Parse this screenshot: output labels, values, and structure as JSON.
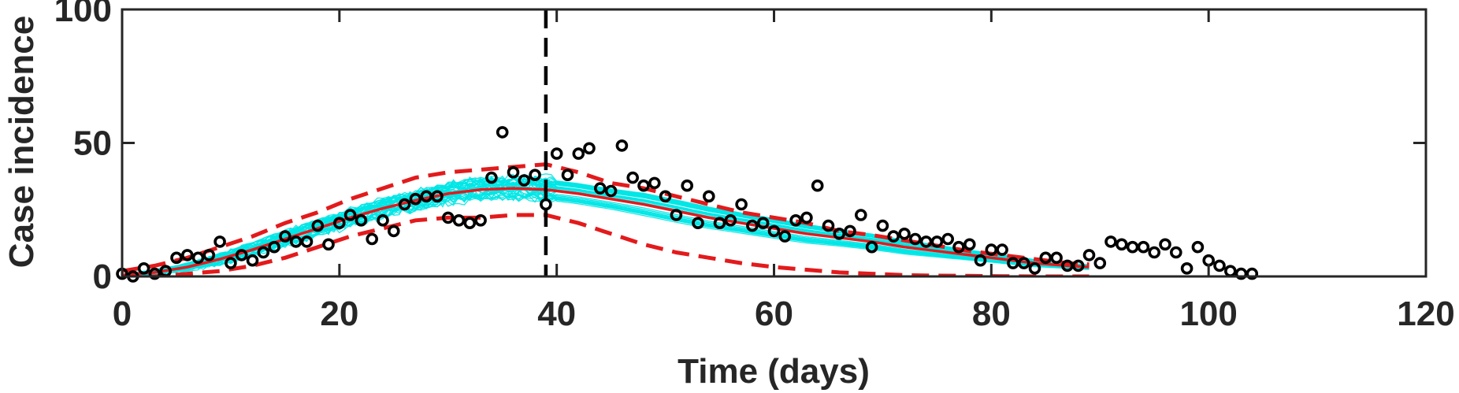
{
  "chart_data": {
    "type": "line",
    "title": "",
    "xlabel": "Time (days)",
    "ylabel": "Case incidence",
    "xlim": [
      0,
      120
    ],
    "ylim": [
      0,
      100
    ],
    "xticks": [
      0,
      20,
      40,
      60,
      80,
      100,
      120
    ],
    "xtick_labels": [
      "0",
      "20",
      "40",
      "60",
      "80",
      "100",
      "120"
    ],
    "yticks": [
      0,
      50,
      100
    ],
    "ytick_labels": [
      "0",
      "50",
      "100"
    ],
    "grid": false,
    "legend": "none",
    "vline_x": 39,
    "colors": {
      "ensemble": "#00e5e5",
      "fit": "#e31a1c",
      "observed": "#000000",
      "vline": "#000000",
      "axis": "#262626"
    },
    "series": [
      {
        "kind": "observed",
        "x": [
          0,
          1,
          2,
          3,
          4,
          5,
          6,
          7,
          8,
          9,
          10,
          11,
          12,
          13,
          14,
          15,
          16,
          17,
          18,
          19,
          20,
          21,
          22,
          23,
          24,
          25,
          26,
          27,
          28,
          29,
          30,
          31,
          32,
          33,
          34,
          35,
          36,
          37,
          38,
          39,
          40,
          41,
          42,
          43,
          44,
          45,
          46,
          47,
          48,
          49,
          50,
          51,
          52,
          53,
          54,
          55,
          56,
          57,
          58,
          59,
          60,
          61,
          62,
          63,
          64,
          65,
          66,
          67,
          68,
          69,
          70,
          71,
          72,
          73,
          74,
          75,
          76,
          77,
          78,
          79,
          80,
          81,
          82,
          83,
          84,
          85,
          86,
          87,
          88,
          89,
          90,
          91,
          92,
          93,
          94,
          95,
          96,
          97,
          98,
          99,
          100,
          101,
          102,
          103,
          104
        ],
        "y": [
          1,
          0,
          3,
          1,
          2,
          7,
          8,
          7,
          8,
          13,
          5,
          8,
          6,
          9,
          11,
          15,
          13,
          13,
          19,
          12,
          20,
          23,
          21,
          14,
          21,
          17,
          27,
          29,
          30,
          30,
          22,
          21,
          20,
          21,
          37,
          54,
          39,
          36,
          38,
          27,
          46,
          38,
          46,
          48,
          33,
          32,
          49,
          37,
          34,
          35,
          30,
          23,
          34,
          20,
          30,
          20,
          21,
          27,
          19,
          20,
          17,
          15,
          21,
          22,
          34,
          19,
          16,
          17,
          23,
          11,
          19,
          15,
          16,
          14,
          13,
          13,
          14,
          11,
          12,
          6,
          10,
          10,
          5,
          5,
          3,
          7,
          7,
          4,
          4,
          8,
          5,
          13,
          12,
          11,
          11,
          9,
          12,
          9,
          3,
          11,
          6,
          4,
          2,
          1,
          1
        ]
      },
      {
        "kind": "fit-mean",
        "x": [
          0,
          3,
          6,
          9,
          12,
          15,
          18,
          21,
          24,
          27,
          30,
          33,
          36,
          39,
          42,
          45,
          48,
          51,
          54,
          57,
          60,
          63,
          66,
          69,
          72,
          75,
          78,
          81,
          84,
          87,
          89
        ],
        "y": [
          0.5,
          1.5,
          3.5,
          6.5,
          10,
          14,
          18,
          22,
          25.5,
          28.5,
          31,
          32.5,
          33,
          32.5,
          31,
          29,
          27,
          24.5,
          22,
          20,
          18,
          16,
          14.5,
          13,
          11,
          9.5,
          8,
          6.5,
          5,
          4,
          3.5
        ]
      },
      {
        "kind": "fit-upper",
        "x": [
          0,
          3,
          6,
          9,
          12,
          15,
          18,
          21,
          24,
          27,
          30,
          33,
          36,
          39,
          42,
          45,
          48,
          51,
          54,
          57,
          60,
          63,
          66,
          69,
          72,
          75,
          78,
          81,
          84,
          87,
          89
        ],
        "y": [
          2,
          4,
          7,
          11,
          15,
          20,
          24,
          29,
          33,
          37,
          39,
          40,
          41,
          42,
          39,
          35,
          33,
          30,
          27,
          24,
          22,
          20,
          17,
          15.5,
          13.5,
          11.5,
          9.5,
          8,
          6.5,
          5,
          4.5
        ]
      },
      {
        "kind": "fit-lower",
        "x": [
          0,
          3,
          6,
          9,
          12,
          15,
          18,
          21,
          24,
          27,
          30,
          33,
          36,
          39,
          42,
          45,
          48,
          51,
          54,
          57,
          60,
          63,
          66,
          69,
          72,
          75,
          78,
          81,
          84,
          87,
          89
        ],
        "y": [
          0,
          0,
          1,
          2,
          4,
          7,
          11,
          15,
          18,
          21,
          22,
          22,
          23,
          23,
          20,
          16,
          12,
          9,
          7,
          5,
          3.5,
          2.5,
          1.5,
          1,
          0.5,
          0.3,
          0.2,
          0.1,
          0,
          0,
          0
        ]
      }
    ]
  }
}
